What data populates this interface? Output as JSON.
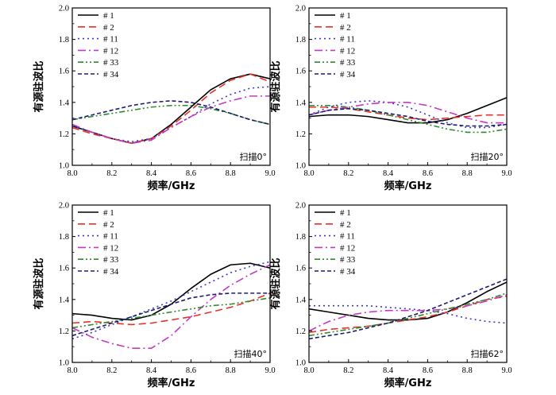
{
  "series_styles": [
    {
      "name": "# 1",
      "color": "#000000",
      "dash": ""
    },
    {
      "name": "# 2",
      "color": "#e8312a",
      "dash": "9,5"
    },
    {
      "name": "# 11",
      "color": "#3a3ac4",
      "dash": "2,4"
    },
    {
      "name": "# 12",
      "color": "#c43ac4",
      "dash": "10,4,2,4"
    },
    {
      "name": "# 33",
      "color": "#2e8b2e",
      "dash": "7,3,2,3,2,3"
    },
    {
      "name": "# 34",
      "color": "#1c1c6e",
      "dash": "5,3"
    }
  ],
  "chart_data": [
    {
      "type": "line",
      "xlabel": "频率/GHz",
      "ylabel": "有源驻波比",
      "annotation": "扫描0°",
      "xlim": [
        8.0,
        9.0
      ],
      "ylim": [
        1.0,
        2.0
      ],
      "xticks": [
        "8.0",
        "8.2",
        "8.4",
        "8.6",
        "8.8",
        "9.0"
      ],
      "yticks": [
        "1.0",
        "1.2",
        "1.4",
        "1.6",
        "1.8",
        "2.0"
      ],
      "x": [
        8.0,
        8.1,
        8.2,
        8.3,
        8.4,
        8.5,
        8.6,
        8.7,
        8.8,
        8.9,
        9.0
      ],
      "series": [
        {
          "name": "# 1",
          "values": [
            1.25,
            1.21,
            1.17,
            1.14,
            1.17,
            1.26,
            1.37,
            1.48,
            1.55,
            1.58,
            1.55
          ]
        },
        {
          "name": "# 2",
          "values": [
            1.24,
            1.2,
            1.17,
            1.14,
            1.17,
            1.25,
            1.35,
            1.46,
            1.54,
            1.58,
            1.53
          ]
        },
        {
          "name": "# 11",
          "values": [
            1.25,
            1.21,
            1.17,
            1.15,
            1.17,
            1.24,
            1.31,
            1.39,
            1.45,
            1.49,
            1.5
          ]
        },
        {
          "name": "# 12",
          "values": [
            1.26,
            1.21,
            1.17,
            1.14,
            1.16,
            1.24,
            1.31,
            1.37,
            1.41,
            1.44,
            1.44
          ]
        },
        {
          "name": "# 33",
          "values": [
            1.29,
            1.31,
            1.33,
            1.35,
            1.37,
            1.38,
            1.38,
            1.36,
            1.33,
            1.29,
            1.26
          ]
        },
        {
          "name": "# 34",
          "values": [
            1.29,
            1.32,
            1.35,
            1.38,
            1.4,
            1.41,
            1.4,
            1.37,
            1.33,
            1.29,
            1.26
          ]
        }
      ]
    },
    {
      "type": "line",
      "xlabel": "频率/GHz",
      "ylabel": "有源驻波比",
      "annotation": "扫描20°",
      "xlim": [
        8.0,
        9.0
      ],
      "ylim": [
        1.0,
        2.0
      ],
      "xticks": [
        "8.0",
        "8.2",
        "8.4",
        "8.6",
        "8.8",
        "9.0"
      ],
      "yticks": [
        "1.0",
        "1.2",
        "1.4",
        "1.6",
        "1.8",
        "2.0"
      ],
      "x": [
        8.0,
        8.1,
        8.2,
        8.3,
        8.4,
        8.5,
        8.6,
        8.7,
        8.8,
        8.9,
        9.0
      ],
      "series": [
        {
          "name": "# 1",
          "values": [
            1.31,
            1.32,
            1.32,
            1.31,
            1.29,
            1.27,
            1.27,
            1.29,
            1.33,
            1.38,
            1.43
          ]
        },
        {
          "name": "# 2",
          "values": [
            1.37,
            1.37,
            1.36,
            1.34,
            1.32,
            1.3,
            1.29,
            1.3,
            1.31,
            1.32,
            1.32
          ]
        },
        {
          "name": "# 11",
          "values": [
            1.32,
            1.37,
            1.4,
            1.41,
            1.4,
            1.37,
            1.32,
            1.27,
            1.24,
            1.24,
            1.26
          ]
        },
        {
          "name": "# 12",
          "values": [
            1.32,
            1.35,
            1.37,
            1.39,
            1.4,
            1.4,
            1.38,
            1.34,
            1.3,
            1.27,
            1.27
          ]
        },
        {
          "name": "# 33",
          "values": [
            1.38,
            1.38,
            1.37,
            1.35,
            1.32,
            1.29,
            1.26,
            1.23,
            1.21,
            1.21,
            1.23
          ]
        },
        {
          "name": "# 34",
          "values": [
            1.32,
            1.35,
            1.36,
            1.35,
            1.33,
            1.31,
            1.28,
            1.26,
            1.25,
            1.25,
            1.26
          ]
        }
      ]
    },
    {
      "type": "line",
      "xlabel": "频率/GHz",
      "ylabel": "有源驻波比",
      "annotation": "扫描40°",
      "xlim": [
        8.0,
        9.0
      ],
      "ylim": [
        1.0,
        2.0
      ],
      "xticks": [
        "8.0",
        "8.2",
        "8.4",
        "8.6",
        "8.8",
        "9.0"
      ],
      "yticks": [
        "1.0",
        "1.2",
        "1.4",
        "1.6",
        "1.8",
        "2.0"
      ],
      "x": [
        8.0,
        8.1,
        8.2,
        8.3,
        8.4,
        8.5,
        8.6,
        8.7,
        8.8,
        8.9,
        9.0
      ],
      "series": [
        {
          "name": "# 1",
          "values": [
            1.31,
            1.3,
            1.28,
            1.27,
            1.3,
            1.37,
            1.47,
            1.56,
            1.62,
            1.63,
            1.6
          ]
        },
        {
          "name": "# 2",
          "values": [
            1.25,
            1.26,
            1.25,
            1.24,
            1.25,
            1.27,
            1.29,
            1.32,
            1.35,
            1.39,
            1.44
          ]
        },
        {
          "name": "# 11",
          "values": [
            1.15,
            1.19,
            1.24,
            1.29,
            1.34,
            1.39,
            1.45,
            1.51,
            1.57,
            1.61,
            1.64
          ]
        },
        {
          "name": "# 12",
          "values": [
            1.22,
            1.16,
            1.12,
            1.09,
            1.09,
            1.17,
            1.29,
            1.4,
            1.49,
            1.56,
            1.62
          ]
        },
        {
          "name": "# 33",
          "values": [
            1.22,
            1.24,
            1.26,
            1.28,
            1.3,
            1.32,
            1.34,
            1.36,
            1.37,
            1.39,
            1.41
          ]
        },
        {
          "name": "# 34",
          "values": [
            1.17,
            1.21,
            1.25,
            1.29,
            1.33,
            1.37,
            1.41,
            1.43,
            1.44,
            1.44,
            1.44
          ]
        }
      ]
    },
    {
      "type": "line",
      "xlabel": "频率/GHz",
      "ylabel": "有源驻波比",
      "annotation": "扫描62°",
      "xlim": [
        8.0,
        9.0
      ],
      "ylim": [
        1.0,
        2.0
      ],
      "xticks": [
        "8.0",
        "8.2",
        "8.4",
        "8.6",
        "8.8",
        "9.0"
      ],
      "yticks": [
        "1.0",
        "1.2",
        "1.4",
        "1.6",
        "1.8",
        "2.0"
      ],
      "x": [
        8.0,
        8.1,
        8.2,
        8.3,
        8.4,
        8.5,
        8.6,
        8.7,
        8.8,
        8.9,
        9.0
      ],
      "series": [
        {
          "name": "# 1",
          "values": [
            1.34,
            1.32,
            1.3,
            1.28,
            1.27,
            1.27,
            1.28,
            1.32,
            1.38,
            1.45,
            1.51
          ]
        },
        {
          "name": "# 2",
          "values": [
            1.19,
            1.21,
            1.22,
            1.23,
            1.25,
            1.27,
            1.29,
            1.32,
            1.36,
            1.4,
            1.42
          ]
        },
        {
          "name": "# 11",
          "values": [
            1.36,
            1.36,
            1.36,
            1.36,
            1.35,
            1.34,
            1.33,
            1.31,
            1.28,
            1.26,
            1.25
          ]
        },
        {
          "name": "# 12",
          "values": [
            1.2,
            1.26,
            1.3,
            1.32,
            1.33,
            1.33,
            1.33,
            1.34,
            1.36,
            1.39,
            1.43
          ]
        },
        {
          "name": "# 33",
          "values": [
            1.17,
            1.19,
            1.21,
            1.23,
            1.25,
            1.28,
            1.31,
            1.34,
            1.37,
            1.4,
            1.44
          ]
        },
        {
          "name": "# 34",
          "values": [
            1.15,
            1.17,
            1.19,
            1.22,
            1.25,
            1.29,
            1.33,
            1.38,
            1.43,
            1.48,
            1.53
          ]
        }
      ]
    }
  ]
}
